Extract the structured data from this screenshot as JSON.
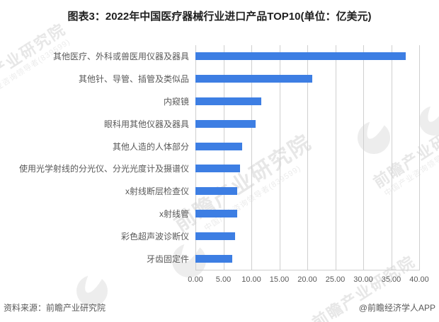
{
  "chart_data": {
    "type": "bar",
    "orientation": "horizontal",
    "title": "图表3：2022年中国医疗器械行业进口产品TOP10(单位：亿美元)",
    "categories": [
      "其他医疗、外科或兽医用仪器及器具",
      "其他针、导管、插管及类似品",
      "内窥镜",
      "眼科用其他仪器及器具",
      "其他人造的人体部分",
      "使用光学射线的分光仪、分光光度计及摄谱仪",
      "x射线断层检查仪",
      "x射线管",
      "彩色超声波诊断仪",
      "牙齿固定件"
    ],
    "values": [
      37.6,
      20.9,
      11.8,
      10.8,
      8.3,
      8.0,
      7.5,
      7.5,
      7.1,
      6.6
    ],
    "xlabel": "",
    "ylabel": "",
    "xlim": [
      0,
      40
    ],
    "xticks": [
      0,
      5,
      10,
      15,
      20,
      25,
      30,
      35,
      40
    ],
    "xtick_labels": [
      "0.00",
      "5.00",
      "10.00",
      "15.00",
      "20.00",
      "25.00",
      "30.00",
      "35.00",
      "40.00"
    ],
    "grid": "vertical-only",
    "legend": false
  },
  "footer": {
    "source": "资料来源：前瞻产业研究院",
    "credit": "@前瞻经济学人APP"
  },
  "watermark": {
    "brand": "前瞻产业研究院",
    "tagline": "中国产业咨询领导者",
    "code": "839599"
  },
  "colors": {
    "bar": "#3d7ee3",
    "grid": "#cfcfcf",
    "title_text": "#1f1f1f",
    "axis_text": "#595959",
    "watermark": "#e7e7e7"
  }
}
